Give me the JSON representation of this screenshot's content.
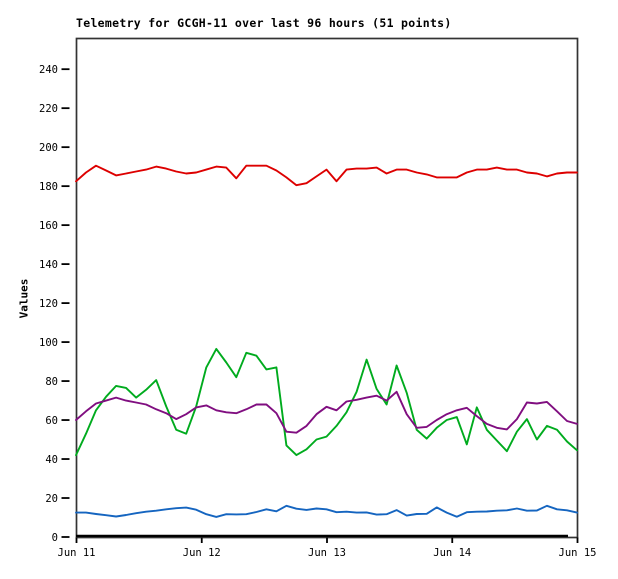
{
  "title": "Telemetry for GCGH-11 over last 96 hours (51 points)",
  "chart_data": {
    "type": "line",
    "title": "Telemetry for GCGH-11 over last 96 hours (51 points)",
    "xlabel": "",
    "ylabel": "Values",
    "ylim": [
      0,
      256
    ],
    "y_ticks": [
      0,
      20,
      40,
      60,
      80,
      100,
      120,
      140,
      160,
      180,
      200,
      220,
      240
    ],
    "x_ticks": [
      "Jun 11",
      "Jun 12",
      "Jun 13",
      "Jun 14",
      "Jun 15"
    ],
    "x_range_hours": 96,
    "points_per_series": 51,
    "grid": false,
    "legend_position": "none",
    "series": [
      {
        "name": "series-red",
        "color": "#dd0000",
        "values": [
          182.5,
          187,
          190.5,
          188,
          185.5,
          186.5,
          187.5,
          188.5,
          190,
          189,
          187.5,
          186.5,
          187,
          188.5,
          190,
          189.5,
          184,
          190.5,
          190.5,
          190.5,
          188,
          184.5,
          180.5,
          181.5,
          185,
          188.5,
          182.5,
          188.5,
          189,
          189,
          189.5,
          186.5,
          188.5,
          188.5,
          187,
          186,
          184.5,
          184.5,
          184.5,
          187,
          188.5,
          188.5,
          189.5,
          188.5,
          188.5,
          187,
          186.5,
          185,
          186.5,
          187,
          187
        ]
      },
      {
        "name": "series-green",
        "color": "#00ab1e",
        "values": [
          42,
          53,
          65,
          72,
          77.5,
          76.5,
          71.5,
          75.5,
          80.5,
          67,
          55,
          53,
          67,
          87,
          96.5,
          89.5,
          82,
          94.5,
          93,
          86,
          87,
          47,
          42,
          45,
          50,
          51.5,
          57,
          64,
          74.5,
          91,
          76,
          68,
          88,
          74,
          55,
          50.5,
          56,
          60,
          61.5,
          47.5,
          66.5,
          55,
          49.5,
          44,
          54,
          60.5,
          50,
          57,
          55,
          49,
          44.5
        ]
      },
      {
        "name": "series-purple",
        "color": "#800e80",
        "values": [
          60,
          64.5,
          68.5,
          70,
          71.5,
          70,
          69,
          68,
          65.5,
          63.5,
          60.5,
          63,
          66.5,
          67.5,
          65,
          64,
          63.5,
          65.5,
          68,
          68,
          63.5,
          54,
          53.5,
          57,
          63,
          66.8,
          65,
          69.5,
          70.4,
          71.5,
          72.5,
          70,
          74.5,
          63,
          56,
          56.5,
          60,
          63,
          65,
          66.3,
          62,
          58,
          56,
          55.2,
          60.5,
          69,
          68.5,
          69.3,
          64.5,
          59.5,
          58
        ]
      },
      {
        "name": "series-blue",
        "color": "#1565c0",
        "values": [
          12.5,
          12.5,
          11.8,
          11.2,
          10.5,
          11.3,
          12.2,
          13,
          13.5,
          14.2,
          14.8,
          15.1,
          14,
          11.7,
          10.3,
          11.7,
          11.6,
          11.7,
          12.8,
          14.2,
          13.2,
          16,
          14.5,
          13.9,
          14.6,
          14.2,
          12.7,
          13,
          12.5,
          12.6,
          11.5,
          11.7,
          13.8,
          11,
          11.8,
          11.9,
          15.2,
          12.5,
          10.4,
          12.7,
          13,
          13.1,
          13.5,
          13.7,
          14.6,
          13.5,
          13.6,
          16,
          14.2,
          13.7,
          12.5
        ]
      }
    ]
  },
  "colors": {
    "background": "#ffffff",
    "border": "#333333",
    "axis": "#000000",
    "text": "#000000"
  }
}
